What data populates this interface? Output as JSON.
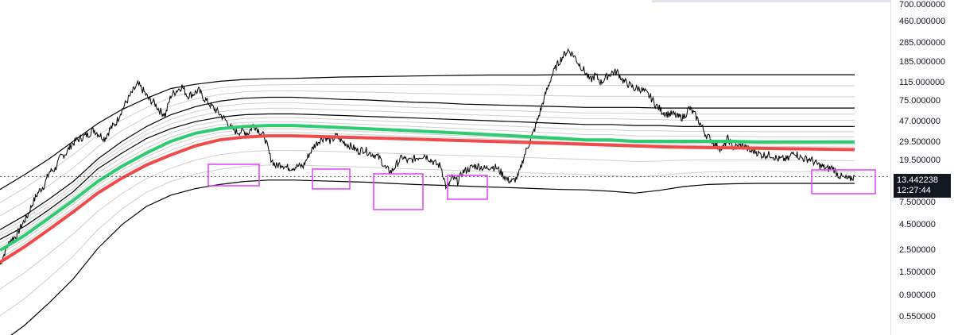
{
  "chart_data": {
    "type": "line",
    "y_scale": "log",
    "ylim": [
      0.45,
      700
    ],
    "price_axis_ticks": [
      "700.000000",
      "460.000000",
      "285.000000",
      "185.000000",
      "115.000000",
      "75.000000",
      "47.000000",
      "29.500000",
      "19.500000",
      "13.442238",
      "7.500000",
      "4.500000",
      "2.500000",
      "1.500000",
      "0.900000",
      "0.550000"
    ],
    "last_price": "13.442238",
    "countdown": "12:27:44",
    "series": [
      {
        "role": "price",
        "color": "#000000",
        "values": [
          1.8,
          2.5,
          3.2,
          3.5,
          4.5,
          5.5,
          7.5,
          9.5,
          11,
          15,
          16,
          21,
          23,
          28,
          31,
          33,
          35,
          39,
          35,
          32,
          40,
          45,
          60,
          75,
          92,
          110,
          95,
          78,
          72,
          60,
          55,
          85,
          95,
          105,
          85,
          88,
          96,
          80,
          70,
          62,
          55,
          48,
          40,
          37,
          38,
          36,
          44,
          38,
          33,
          21,
          17,
          18,
          16.5,
          16.5,
          17,
          17,
          22,
          27,
          31,
          33,
          30,
          34,
          30,
          28,
          26,
          24,
          25,
          23,
          22,
          20,
          16,
          15,
          18,
          21,
          19,
          20,
          21,
          22,
          20,
          18,
          17,
          10,
          13,
          12,
          15,
          16,
          17,
          17,
          16,
          17,
          16.5,
          14.5,
          12.5,
          12,
          13.5,
          21,
          29,
          40,
          60,
          90,
          130,
          170,
          205,
          240,
          215,
          175,
          150,
          120,
          135,
          115,
          130,
          145,
          145,
          120,
          110,
          100,
          100,
          92,
          82,
          68,
          60,
          56,
          56,
          52,
          52,
          64,
          55,
          45,
          35,
          31,
          27,
          25,
          32,
          26,
          27,
          27,
          24,
          24,
          22,
          22,
          22,
          20,
          20,
          20,
          24,
          21,
          20,
          20,
          18,
          17,
          16,
          16.5,
          14,
          13,
          12.5,
          13.5
        ]
      },
      {
        "role": "band-upper",
        "color": "#000000",
        "values": [
          10,
          14,
          20,
          30,
          45,
          62,
          80,
          100,
          110,
          118,
          123,
          125,
          126,
          128,
          130,
          131,
          132,
          133,
          134,
          135,
          136,
          136,
          136,
          137,
          137,
          137,
          137,
          137,
          137,
          137,
          137,
          137,
          137,
          137,
          137,
          137
        ]
      },
      {
        "role": "band",
        "color": "#000000",
        "values": [
          4,
          5.5,
          8,
          12,
          20,
          30,
          42,
          55,
          66,
          75,
          80,
          82,
          82,
          80,
          78,
          77,
          75,
          73,
          72,
          70,
          69,
          68,
          67,
          66,
          65,
          65,
          65,
          64,
          64,
          64,
          64,
          64,
          64,
          64,
          64,
          64
        ]
      },
      {
        "role": "band",
        "color": "#000000",
        "values": [
          3.2,
          4.3,
          6.3,
          9.5,
          16,
          23,
          32,
          40,
          47,
          52,
          55,
          56,
          56,
          55,
          54,
          53,
          52,
          51,
          50,
          49,
          48,
          47,
          46,
          45,
          44,
          44,
          43,
          43,
          42,
          42,
          42,
          42,
          42,
          42,
          42,
          42
        ]
      },
      {
        "role": "band-green",
        "color": "#2ecc71",
        "values": [
          2.5,
          3.5,
          5.2,
          7.8,
          12,
          17,
          23,
          30,
          36,
          40,
          42,
          43,
          43,
          42,
          41,
          40,
          39,
          38,
          37,
          36,
          35,
          34,
          33,
          32,
          31,
          31,
          30,
          30,
          30,
          30,
          30,
          29.5,
          29.5,
          29.5,
          29.5,
          29.5
        ]
      },
      {
        "role": "band-red",
        "color": "#ef4b4b",
        "values": [
          1.9,
          2.7,
          4,
          6,
          9.2,
          13,
          17.5,
          22,
          27,
          31,
          33,
          34,
          34,
          33.5,
          33,
          32.5,
          32,
          31.5,
          31,
          30.5,
          30,
          29.5,
          29,
          28.5,
          28,
          27.5,
          27,
          26.5,
          26.2,
          26,
          25.8,
          25.6,
          25.4,
          25.2,
          25,
          24.8
        ]
      },
      {
        "role": "band-lower",
        "color": "#000000",
        "values": [
          0.3,
          0.45,
          0.75,
          1.3,
          2.6,
          4.5,
          6.8,
          8.8,
          10.2,
          11.2,
          12,
          12.4,
          12.4,
          12.2,
          12,
          11.8,
          11.5,
          11.2,
          11,
          10.8,
          10.6,
          10.4,
          10.2,
          10,
          9.9,
          9.6,
          9.2,
          9.8,
          10.7,
          11.2,
          11.4,
          11.5,
          11.5,
          11.5,
          11.5,
          11.5
        ]
      }
    ],
    "highlight_boxes": 6
  }
}
